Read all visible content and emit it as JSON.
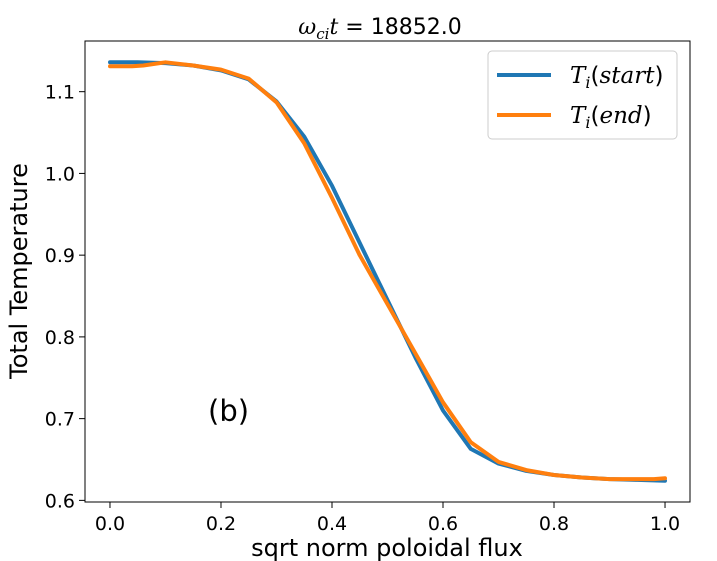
{
  "chart_data": {
    "type": "line",
    "title": {
      "omega": "ω",
      "omega_sub": "ci",
      "t": "t",
      "eq": " = 18852.0"
    },
    "xlabel": "sqrt norm poloidal flux",
    "ylabel": "Total Temperature",
    "xlim": [
      -0.045,
      1.045
    ],
    "ylim": [
      0.598,
      1.162
    ],
    "xticks": [
      0.0,
      0.2,
      0.4,
      0.6,
      0.8,
      1.0
    ],
    "xtick_labels": [
      "0.0",
      "0.2",
      "0.4",
      "0.6",
      "0.8",
      "1.0"
    ],
    "yticks": [
      0.6,
      0.7,
      0.8,
      0.9,
      1.0,
      1.1
    ],
    "ytick_labels": [
      "0.6",
      "0.7",
      "0.8",
      "0.9",
      "1.0",
      "1.1"
    ],
    "grid": false,
    "legend_position": "top-right",
    "annotation": "(b)",
    "series": [
      {
        "legend_main": "T",
        "legend_sub": "i",
        "legend_arg": "start",
        "color": "#1f77b4",
        "x": [
          0.0,
          0.05,
          0.1,
          0.15,
          0.2,
          0.25,
          0.3,
          0.35,
          0.4,
          0.45,
          0.5,
          0.55,
          0.6,
          0.65,
          0.7,
          0.75,
          0.8,
          0.85,
          0.9,
          0.95,
          1.0
        ],
        "y": [
          1.136,
          1.136,
          1.135,
          1.132,
          1.126,
          1.115,
          1.088,
          1.045,
          0.985,
          0.915,
          0.845,
          0.775,
          0.71,
          0.663,
          0.645,
          0.636,
          0.631,
          0.628,
          0.626,
          0.625,
          0.624
        ]
      },
      {
        "legend_main": "T",
        "legend_sub": "i",
        "legend_arg": "end",
        "color": "#ff7f0e",
        "x": [
          0.0,
          0.02,
          0.04,
          0.06,
          0.08,
          0.1,
          0.15,
          0.2,
          0.25,
          0.3,
          0.35,
          0.4,
          0.45,
          0.5,
          0.55,
          0.6,
          0.65,
          0.7,
          0.75,
          0.8,
          0.85,
          0.9,
          0.95,
          0.98,
          1.0
        ],
        "y": [
          1.131,
          1.131,
          1.131,
          1.132,
          1.134,
          1.136,
          1.132,
          1.127,
          1.116,
          1.087,
          1.037,
          0.97,
          0.9,
          0.84,
          0.78,
          0.72,
          0.671,
          0.647,
          0.637,
          0.631,
          0.628,
          0.626,
          0.626,
          0.626,
          0.627
        ]
      }
    ]
  }
}
